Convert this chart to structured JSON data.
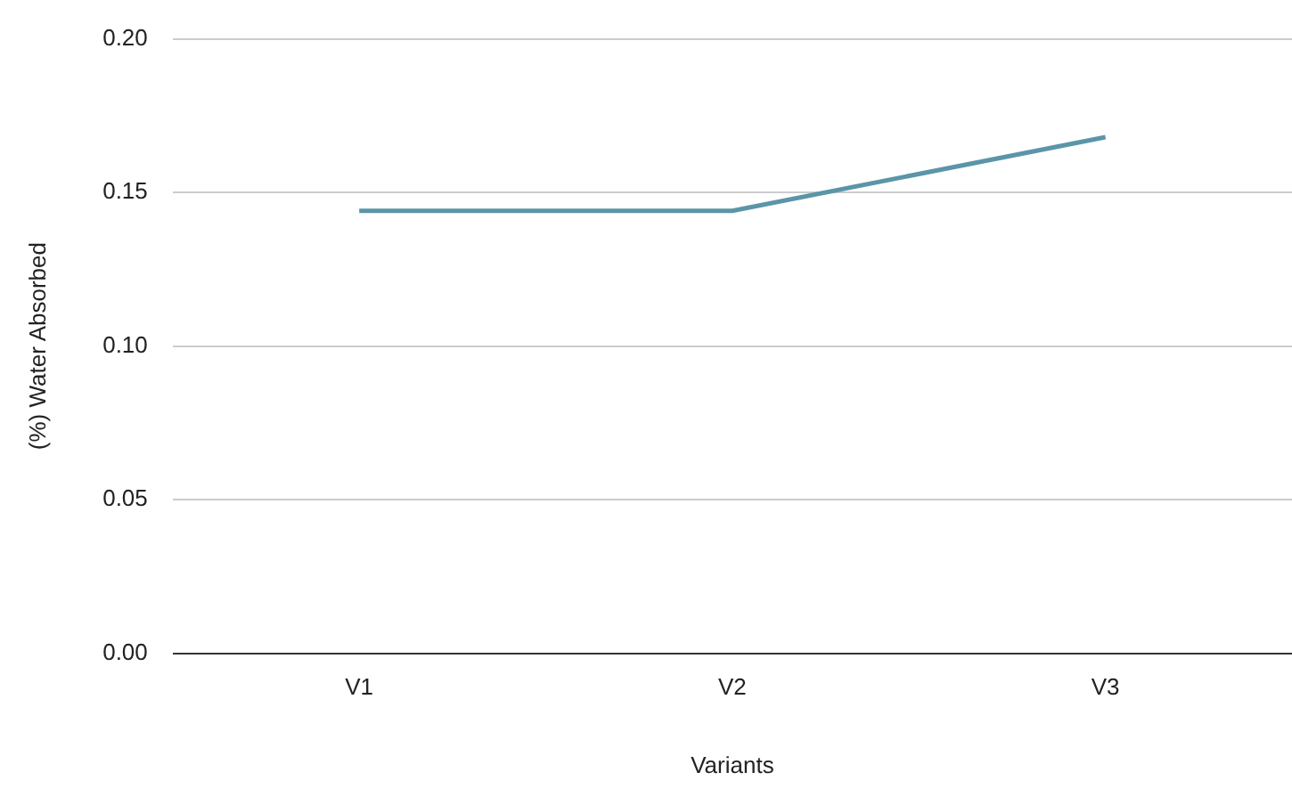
{
  "chart_data": {
    "type": "line",
    "xlabel": "Variants",
    "ylabel": "(%) Water Absorbed",
    "categories": [
      "V1",
      "V2",
      "V3"
    ],
    "series": [
      {
        "color": "#5b95a8",
        "values": [
          0.144,
          0.144,
          0.168
        ]
      }
    ],
    "ylim": [
      0,
      0.2
    ],
    "yticks": [
      {
        "value": 0,
        "label": "0.00"
      },
      {
        "value": 0.05,
        "label": "0.05"
      },
      {
        "value": 0.1,
        "label": "0.10"
      },
      {
        "value": 0.15,
        "label": "0.15"
      },
      {
        "value": 0.2,
        "label": "0.20"
      }
    ],
    "grid": "y",
    "legend": false,
    "marker": "none",
    "line_style": "solid"
  }
}
